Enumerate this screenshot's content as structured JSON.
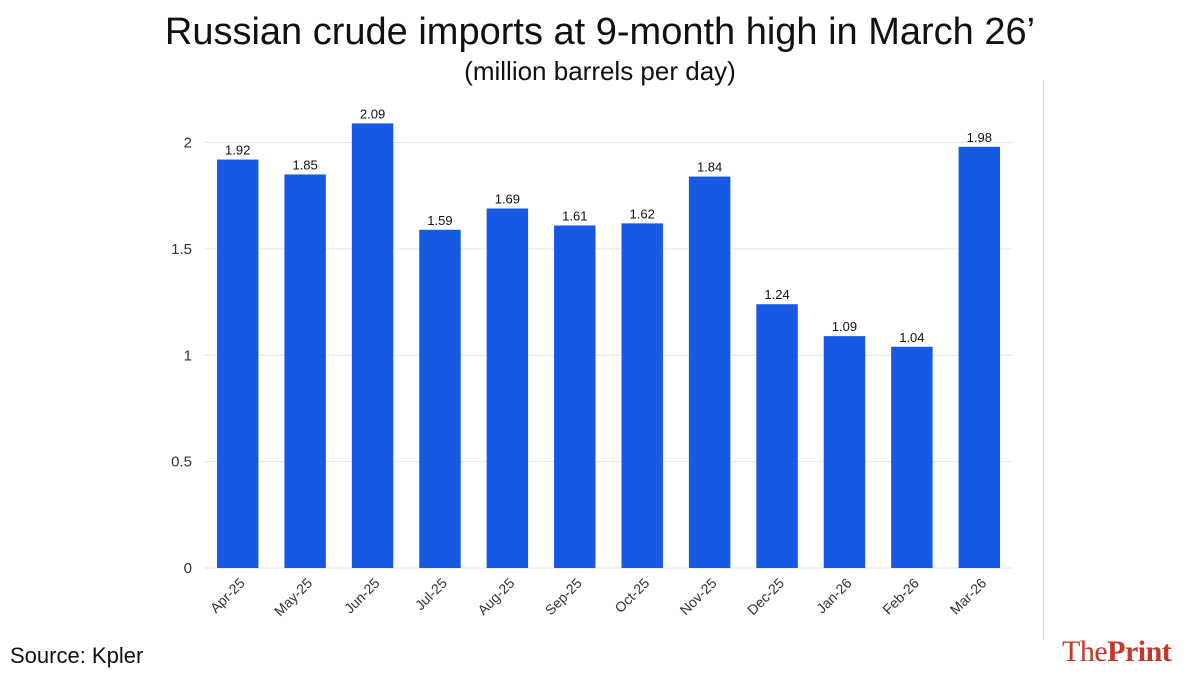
{
  "title": "Russian crude imports at 9-month high in March 26’",
  "subtitle": "(million barrels per day)",
  "source": "Source: Kpler",
  "brand": {
    "part1": "The",
    "part2": "Print",
    "color": "#c0392b"
  },
  "colors": {
    "bar": "#165ae3",
    "grid": "#e6e6e6",
    "text": "#111111",
    "axis_text": "#333333"
  },
  "chart_data": {
    "type": "bar",
    "title": "Russian crude imports at 9-month high in March 26’",
    "subtitle": "(million barrels per day)",
    "xlabel": "",
    "ylabel": "",
    "categories": [
      "Apr-25",
      "May-25",
      "Jun-25",
      "Jul-25",
      "Aug-25",
      "Sep-25",
      "Oct-25",
      "Nov-25",
      "Dec-25",
      "Jan-26",
      "Feb-26",
      "Mar-26"
    ],
    "values": [
      1.92,
      1.85,
      2.09,
      1.59,
      1.69,
      1.61,
      1.62,
      1.84,
      1.24,
      1.09,
      1.04,
      1.98
    ],
    "value_labels": [
      "1.92",
      "1.85",
      "2.09",
      "1.59",
      "1.69",
      "1.61",
      "1.62",
      "1.84",
      "1.24",
      "1.09",
      "1.04",
      "1.98"
    ],
    "ylim": [
      0,
      2.2
    ],
    "yticks": [
      0,
      0.5,
      1,
      1.5,
      2
    ],
    "ytick_labels": [
      "0",
      "0.5",
      "1",
      "1.5",
      "2"
    ],
    "grid": true,
    "legend": "none",
    "x_tick_rotation": "45 degrees"
  }
}
